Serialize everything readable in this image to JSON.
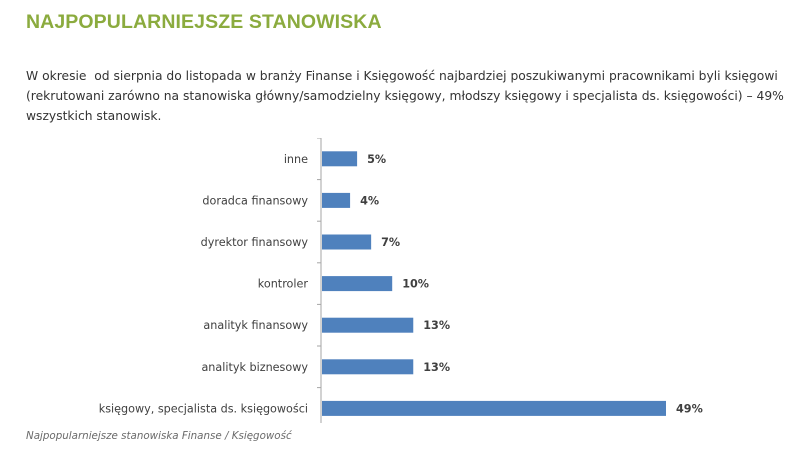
{
  "heading": "NAJPOPULARNIEJSZE STANOWISKA",
  "intro": "W okresie  od sierpnia do listopada w branży Finanse i Księgowość najbardziej poszukiwanymi pracownikami byli księgowi (rekrutowani zarówno na stanowiska główny/samodzielny księgowy, młodszy księgowy i specjalista ds. księgowości) – 49% wszystkich stanowisk.",
  "caption": "Najpopularniejsze stanowiska Finanse / Księgowość",
  "chart_data": {
    "type": "bar",
    "orientation": "horizontal",
    "categories": [
      "inne",
      "doradca finansowy",
      "dyrektor finansowy",
      "kontroler",
      "analityk finansowy",
      "analityk biznesowy",
      "księgowy, specjalista ds. księgowości"
    ],
    "values": [
      5,
      4,
      7,
      10,
      13,
      13,
      49
    ],
    "data_labels": [
      "5%",
      "4%",
      "7%",
      "10%",
      "13%",
      "13%",
      "49%"
    ],
    "unit": "%",
    "xlim": [
      0,
      49
    ],
    "grid": false,
    "legend": "none",
    "bar_color": "#4f81bd",
    "axis_color": "#a6a6a6"
  }
}
